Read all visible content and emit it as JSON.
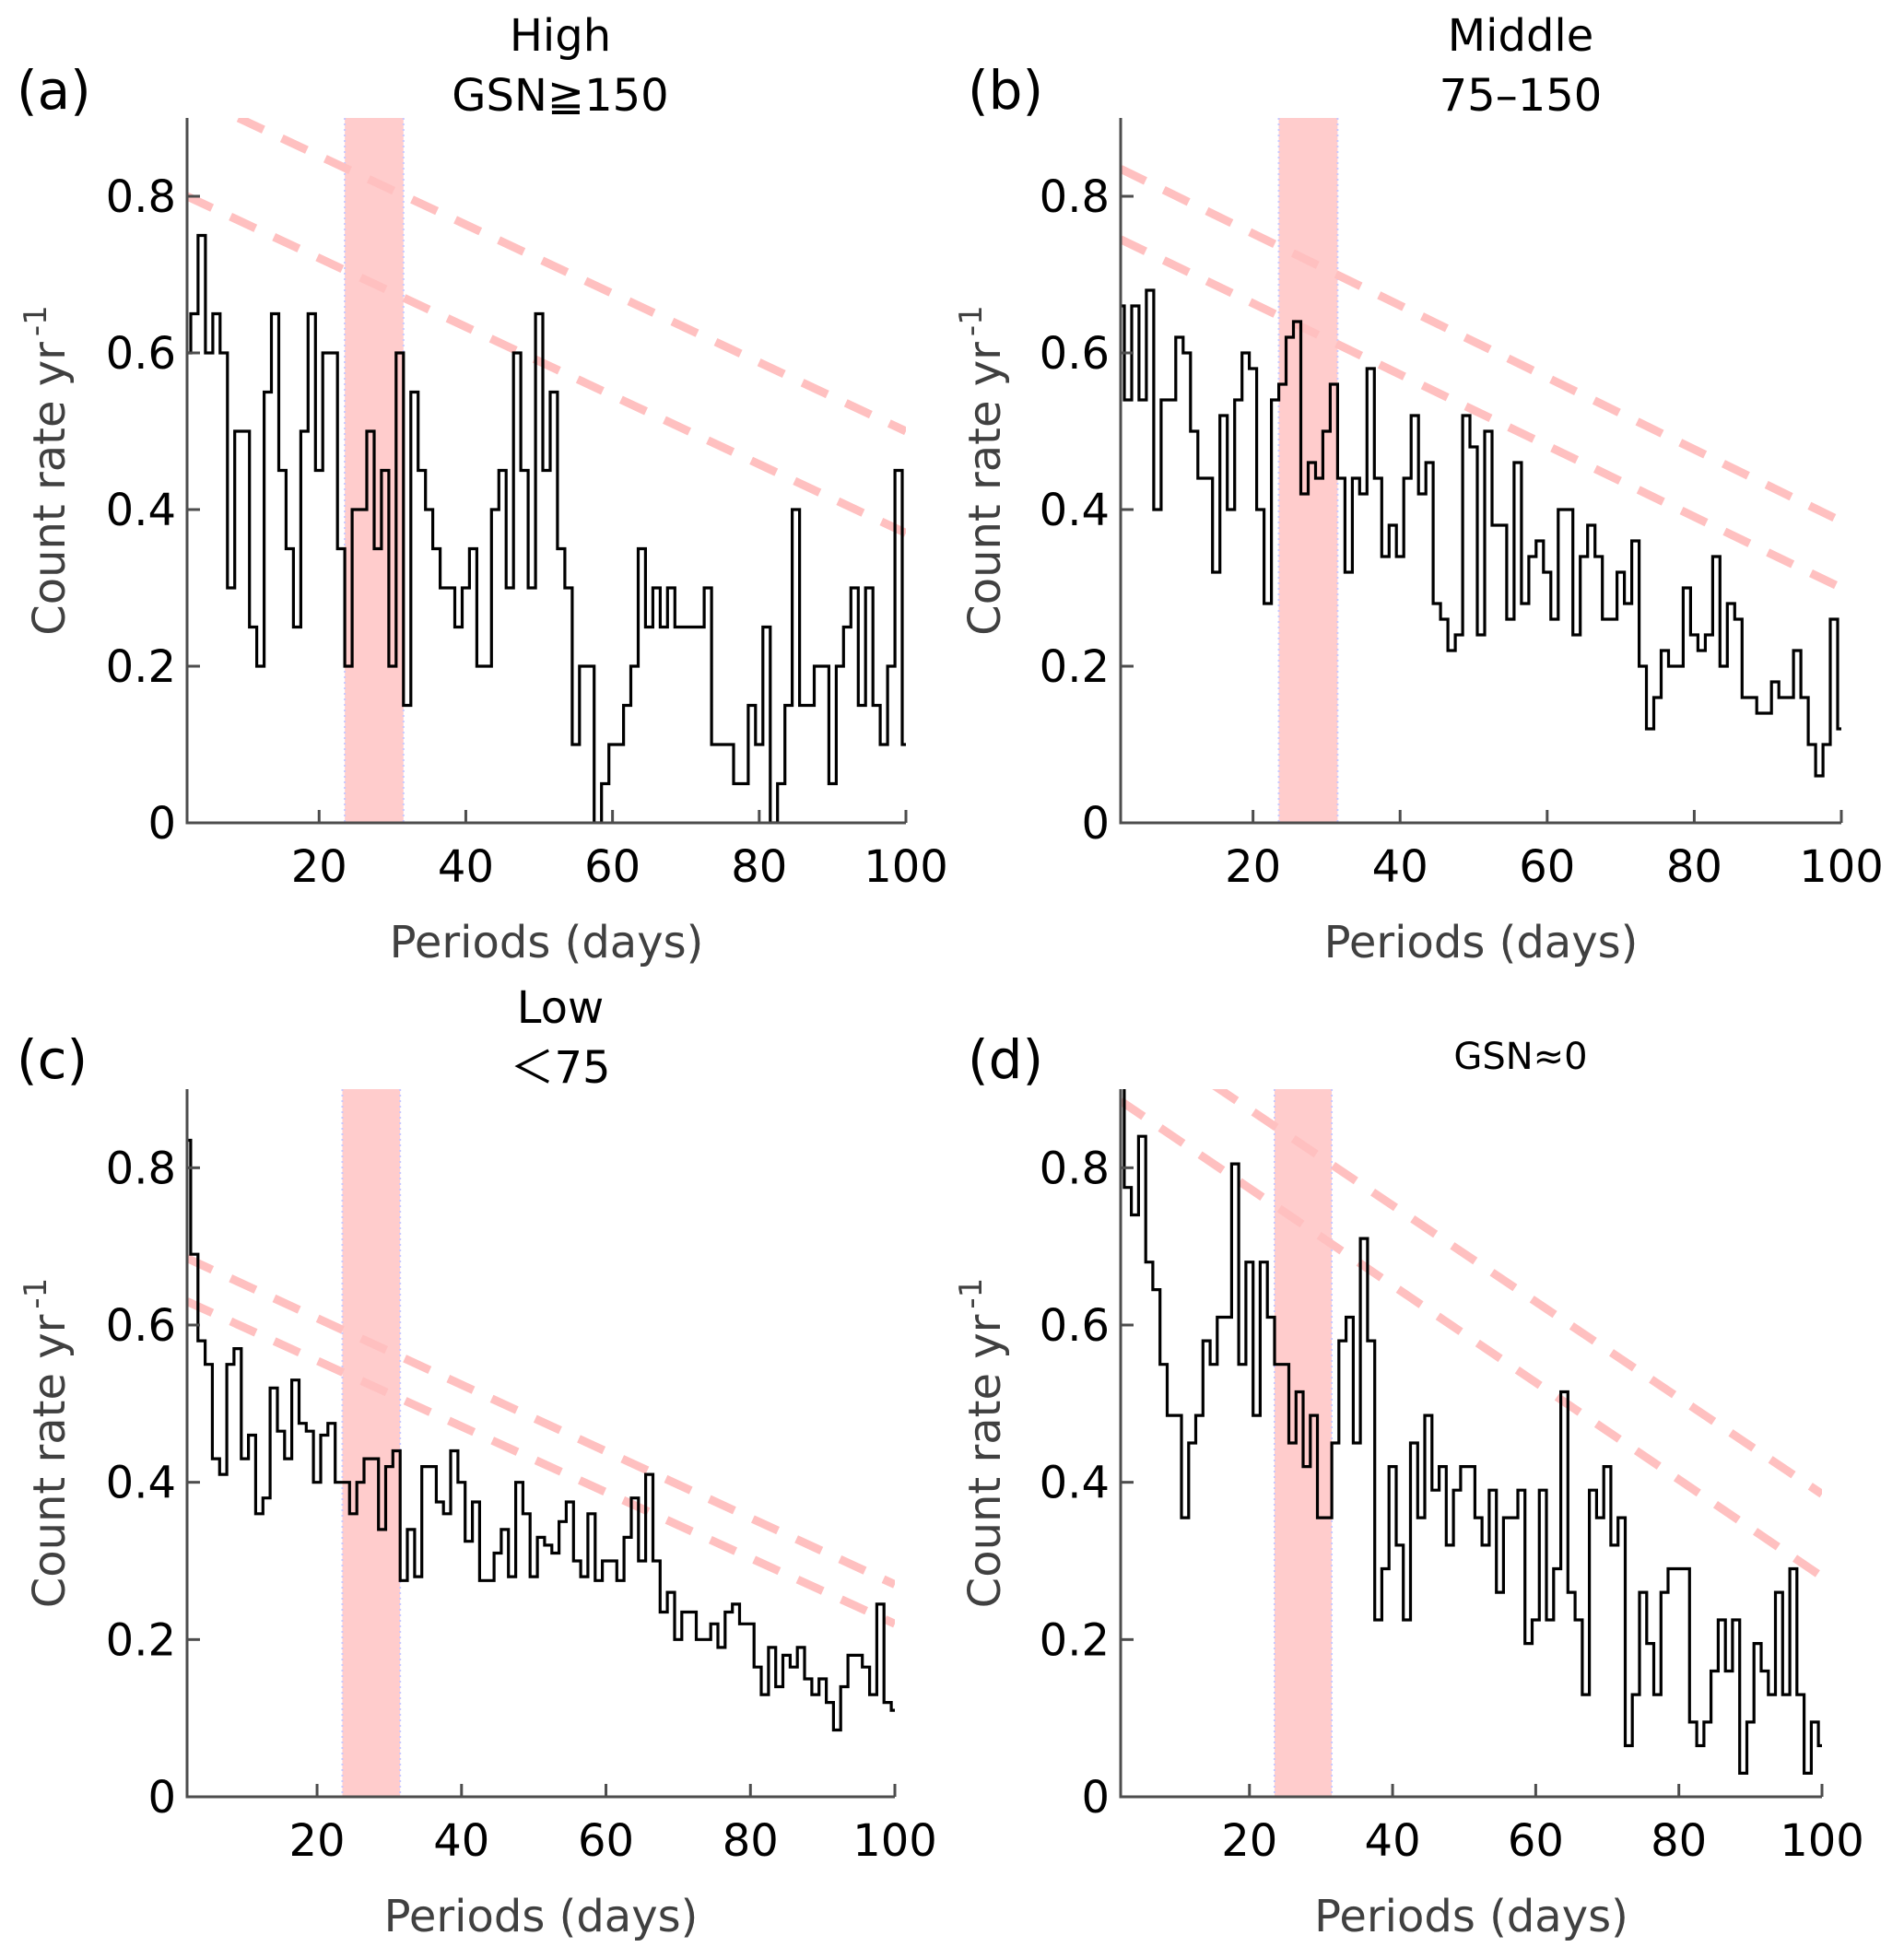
{
  "chart_data": [
    {
      "type": "line",
      "step": true,
      "panel_label": "(a)",
      "title": [
        "High",
        "GSN≧150"
      ],
      "xlabel": "Periods (days)",
      "ylabel": "Count rate yr",
      "ylabel_sup": "-1",
      "xlim": [
        2,
        100
      ],
      "ylim": [
        0,
        0.9
      ],
      "xticks": [
        20,
        40,
        60,
        80,
        100
      ],
      "yticks": [
        0,
        0.2,
        0.4,
        0.6,
        0.8
      ],
      "ytick_labels": [
        "0",
        "0.2",
        "0.4",
        "0.6",
        "0.8"
      ],
      "xtick_labels": [
        "20",
        "40",
        "60",
        "80",
        "100"
      ],
      "bin_start": 2.5,
      "bin_width": 1,
      "values": [
        0.6,
        0.65,
        0.75,
        0.6,
        0.65,
        0.6,
        0.3,
        0.5,
        0.5,
        0.25,
        0.2,
        0.55,
        0.65,
        0.45,
        0.35,
        0.25,
        0.5,
        0.65,
        0.45,
        0.6,
        0.6,
        0.35,
        0.2,
        0.4,
        0.4,
        0.5,
        0.35,
        0.45,
        0.2,
        0.6,
        0.15,
        0.55,
        0.45,
        0.4,
        0.35,
        0.3,
        0.3,
        0.25,
        0.3,
        0.35,
        0.2,
        0.2,
        0.4,
        0.45,
        0.3,
        0.6,
        0.45,
        0.3,
        0.65,
        0.45,
        0.55,
        0.35,
        0.3,
        0.1,
        0.2,
        0.2,
        0,
        0.05,
        0.1,
        0.1,
        0.15,
        0.2,
        0.35,
        0.25,
        0.3,
        0.25,
        0.3,
        0.25,
        0.25,
        0.25,
        0.25,
        0.3,
        0.1,
        0.1,
        0.1,
        0.05,
        0.05,
        0.15,
        0.1,
        0.25,
        0,
        0.05,
        0.15,
        0.4,
        0.15,
        0.15,
        0.2,
        0.2,
        0.05,
        0.2,
        0.25,
        0.3,
        0.15,
        0.3,
        0.15,
        0.1,
        0.2,
        0.45,
        0.1
      ],
      "band": [
        23.5,
        31.5
      ],
      "dashed_lines": [
        {
          "x": [
            9,
            100
          ],
          "y": [
            0.9,
            0.5
          ]
        },
        {
          "x": [
            2,
            100
          ],
          "y": [
            0.8,
            0.37
          ]
        }
      ]
    },
    {
      "type": "line",
      "step": true,
      "panel_label": "(b)",
      "title": [
        "Middle",
        "75–150"
      ],
      "xlabel": "Periods (days)",
      "ylabel": "Count rate yr",
      "ylabel_sup": "-1",
      "xlim": [
        2,
        100
      ],
      "ylim": [
        0,
        0.9
      ],
      "xticks": [
        20,
        40,
        60,
        80,
        100
      ],
      "yticks": [
        0,
        0.2,
        0.4,
        0.6,
        0.8
      ],
      "ytick_labels": [
        "0",
        "0.2",
        "0.4",
        "0.6",
        "0.8"
      ],
      "xtick_labels": [
        "20",
        "40",
        "60",
        "80",
        "100"
      ],
      "bin_start": 2.5,
      "bin_width": 1,
      "values": [
        0.66,
        0.54,
        0.66,
        0.54,
        0.68,
        0.4,
        0.54,
        0.54,
        0.62,
        0.6,
        0.5,
        0.44,
        0.44,
        0.32,
        0.52,
        0.4,
        0.54,
        0.6,
        0.58,
        0.4,
        0.28,
        0.54,
        0.56,
        0.62,
        0.64,
        0.42,
        0.46,
        0.44,
        0.5,
        0.56,
        0.44,
        0.32,
        0.44,
        0.42,
        0.58,
        0.44,
        0.34,
        0.38,
        0.34,
        0.44,
        0.52,
        0.42,
        0.46,
        0.28,
        0.26,
        0.22,
        0.24,
        0.52,
        0.48,
        0.24,
        0.5,
        0.38,
        0.38,
        0.26,
        0.46,
        0.28,
        0.34,
        0.36,
        0.32,
        0.26,
        0.4,
        0.4,
        0.24,
        0.34,
        0.38,
        0.34,
        0.26,
        0.26,
        0.32,
        0.28,
        0.36,
        0.2,
        0.12,
        0.16,
        0.22,
        0.2,
        0.2,
        0.3,
        0.24,
        0.22,
        0.24,
        0.34,
        0.2,
        0.28,
        0.26,
        0.16,
        0.16,
        0.14,
        0.14,
        0.18,
        0.16,
        0.16,
        0.22,
        0.16,
        0.1,
        0.06,
        0.1,
        0.26,
        0.12
      ],
      "band": [
        23.5,
        31.5
      ],
      "dashed_lines": [
        {
          "x": [
            2,
            100
          ],
          "y": [
            0.835,
            0.385
          ]
        },
        {
          "x": [
            2,
            100
          ],
          "y": [
            0.745,
            0.3
          ]
        }
      ]
    },
    {
      "type": "line",
      "step": true,
      "panel_label": "(c)",
      "title": [
        "Low",
        "＜75"
      ],
      "xlabel": "Periods (days)",
      "ylabel": "Count rate yr",
      "ylabel_sup": "-1",
      "xlim": [
        2,
        100
      ],
      "ylim": [
        0,
        0.9
      ],
      "xticks": [
        20,
        40,
        60,
        80,
        100
      ],
      "yticks": [
        0,
        0.2,
        0.4,
        0.6,
        0.8
      ],
      "ytick_labels": [
        "0",
        "0.2",
        "0.4",
        "0.6",
        "0.8"
      ],
      "xtick_labels": [
        "20",
        "40",
        "60",
        "80",
        "100"
      ],
      "bin_start": 2.5,
      "bin_width": 1,
      "values": [
        0.835,
        0.69,
        0.58,
        0.55,
        0.43,
        0.41,
        0.55,
        0.57,
        0.43,
        0.46,
        0.36,
        0.38,
        0.52,
        0.465,
        0.43,
        0.53,
        0.475,
        0.465,
        0.4,
        0.46,
        0.475,
        0.4,
        0.4,
        0.36,
        0.4,
        0.43,
        0.43,
        0.34,
        0.42,
        0.44,
        0.275,
        0.34,
        0.28,
        0.42,
        0.42,
        0.375,
        0.36,
        0.44,
        0.4,
        0.325,
        0.375,
        0.275,
        0.275,
        0.31,
        0.34,
        0.28,
        0.4,
        0.36,
        0.28,
        0.33,
        0.32,
        0.31,
        0.35,
        0.375,
        0.3,
        0.28,
        0.36,
        0.275,
        0.3,
        0.3,
        0.275,
        0.33,
        0.38,
        0.3,
        0.41,
        0.3,
        0.235,
        0.26,
        0.2,
        0.235,
        0.235,
        0.2,
        0.2,
        0.22,
        0.19,
        0.235,
        0.245,
        0.22,
        0.22,
        0.165,
        0.13,
        0.19,
        0.14,
        0.18,
        0.165,
        0.19,
        0.15,
        0.13,
        0.15,
        0.12,
        0.085,
        0.14,
        0.18,
        0.18,
        0.165,
        0.13,
        0.245,
        0.12,
        0.11
      ],
      "band": [
        23.5,
        31.5
      ],
      "dashed_lines": [
        {
          "x": [
            2,
            100
          ],
          "y": [
            0.685,
            0.27
          ]
        },
        {
          "x": [
            2,
            100
          ],
          "y": [
            0.63,
            0.22
          ]
        }
      ]
    },
    {
      "type": "line",
      "step": true,
      "panel_label": "(d)",
      "title": [
        "GSN≈0"
      ],
      "xlabel": "Periods (days)",
      "ylabel": "Count rate yr",
      "ylabel_sup": "-1",
      "xlim": [
        2,
        100
      ],
      "ylim": [
        0,
        0.9
      ],
      "xticks": [
        20,
        40,
        60,
        80,
        100
      ],
      "yticks": [
        0,
        0.2,
        0.4,
        0.6,
        0.8
      ],
      "ytick_labels": [
        "0",
        "0.2",
        "0.4",
        "0.6",
        "0.8"
      ],
      "xtick_labels": [
        "20",
        "40",
        "60",
        "80",
        "100"
      ],
      "bin_start": 2.5,
      "bin_width": 1,
      "values": [
        0.95,
        0.775,
        0.74,
        0.84,
        0.68,
        0.645,
        0.55,
        0.485,
        0.485,
        0.355,
        0.45,
        0.485,
        0.58,
        0.55,
        0.61,
        0.61,
        0.805,
        0.55,
        0.68,
        0.485,
        0.68,
        0.61,
        0.55,
        0.55,
        0.45,
        0.515,
        0.42,
        0.485,
        0.355,
        0.355,
        0.45,
        0.58,
        0.61,
        0.45,
        0.71,
        0.58,
        0.225,
        0.29,
        0.42,
        0.32,
        0.225,
        0.45,
        0.355,
        0.485,
        0.39,
        0.42,
        0.32,
        0.39,
        0.42,
        0.42,
        0.355,
        0.32,
        0.39,
        0.26,
        0.355,
        0.355,
        0.39,
        0.195,
        0.225,
        0.39,
        0.225,
        0.29,
        0.515,
        0.26,
        0.225,
        0.13,
        0.39,
        0.355,
        0.42,
        0.32,
        0.355,
        0.065,
        0.13,
        0.26,
        0.195,
        0.13,
        0.26,
        0.29,
        0.29,
        0.29,
        0.095,
        0.065,
        0.095,
        0.16,
        0.225,
        0.16,
        0.225,
        0.03,
        0.095,
        0.195,
        0.16,
        0.13,
        0.26,
        0.13,
        0.29,
        0.13,
        0.03,
        0.095,
        0.065
      ],
      "band": [
        23.5,
        31.5
      ],
      "dashed_lines": [
        {
          "x": [
            15,
            100
          ],
          "y": [
            0.905,
            0.385
          ]
        },
        {
          "x": [
            2,
            100
          ],
          "y": [
            0.885,
            0.28
          ]
        }
      ]
    }
  ],
  "colors": {
    "step_line": "#000000",
    "band_fill": "#ffcccc",
    "band_edge": "#c8c8ff",
    "dashed_line": "#ffc0c0",
    "axis": "#4d4d4d",
    "axis_label": "#404040"
  }
}
